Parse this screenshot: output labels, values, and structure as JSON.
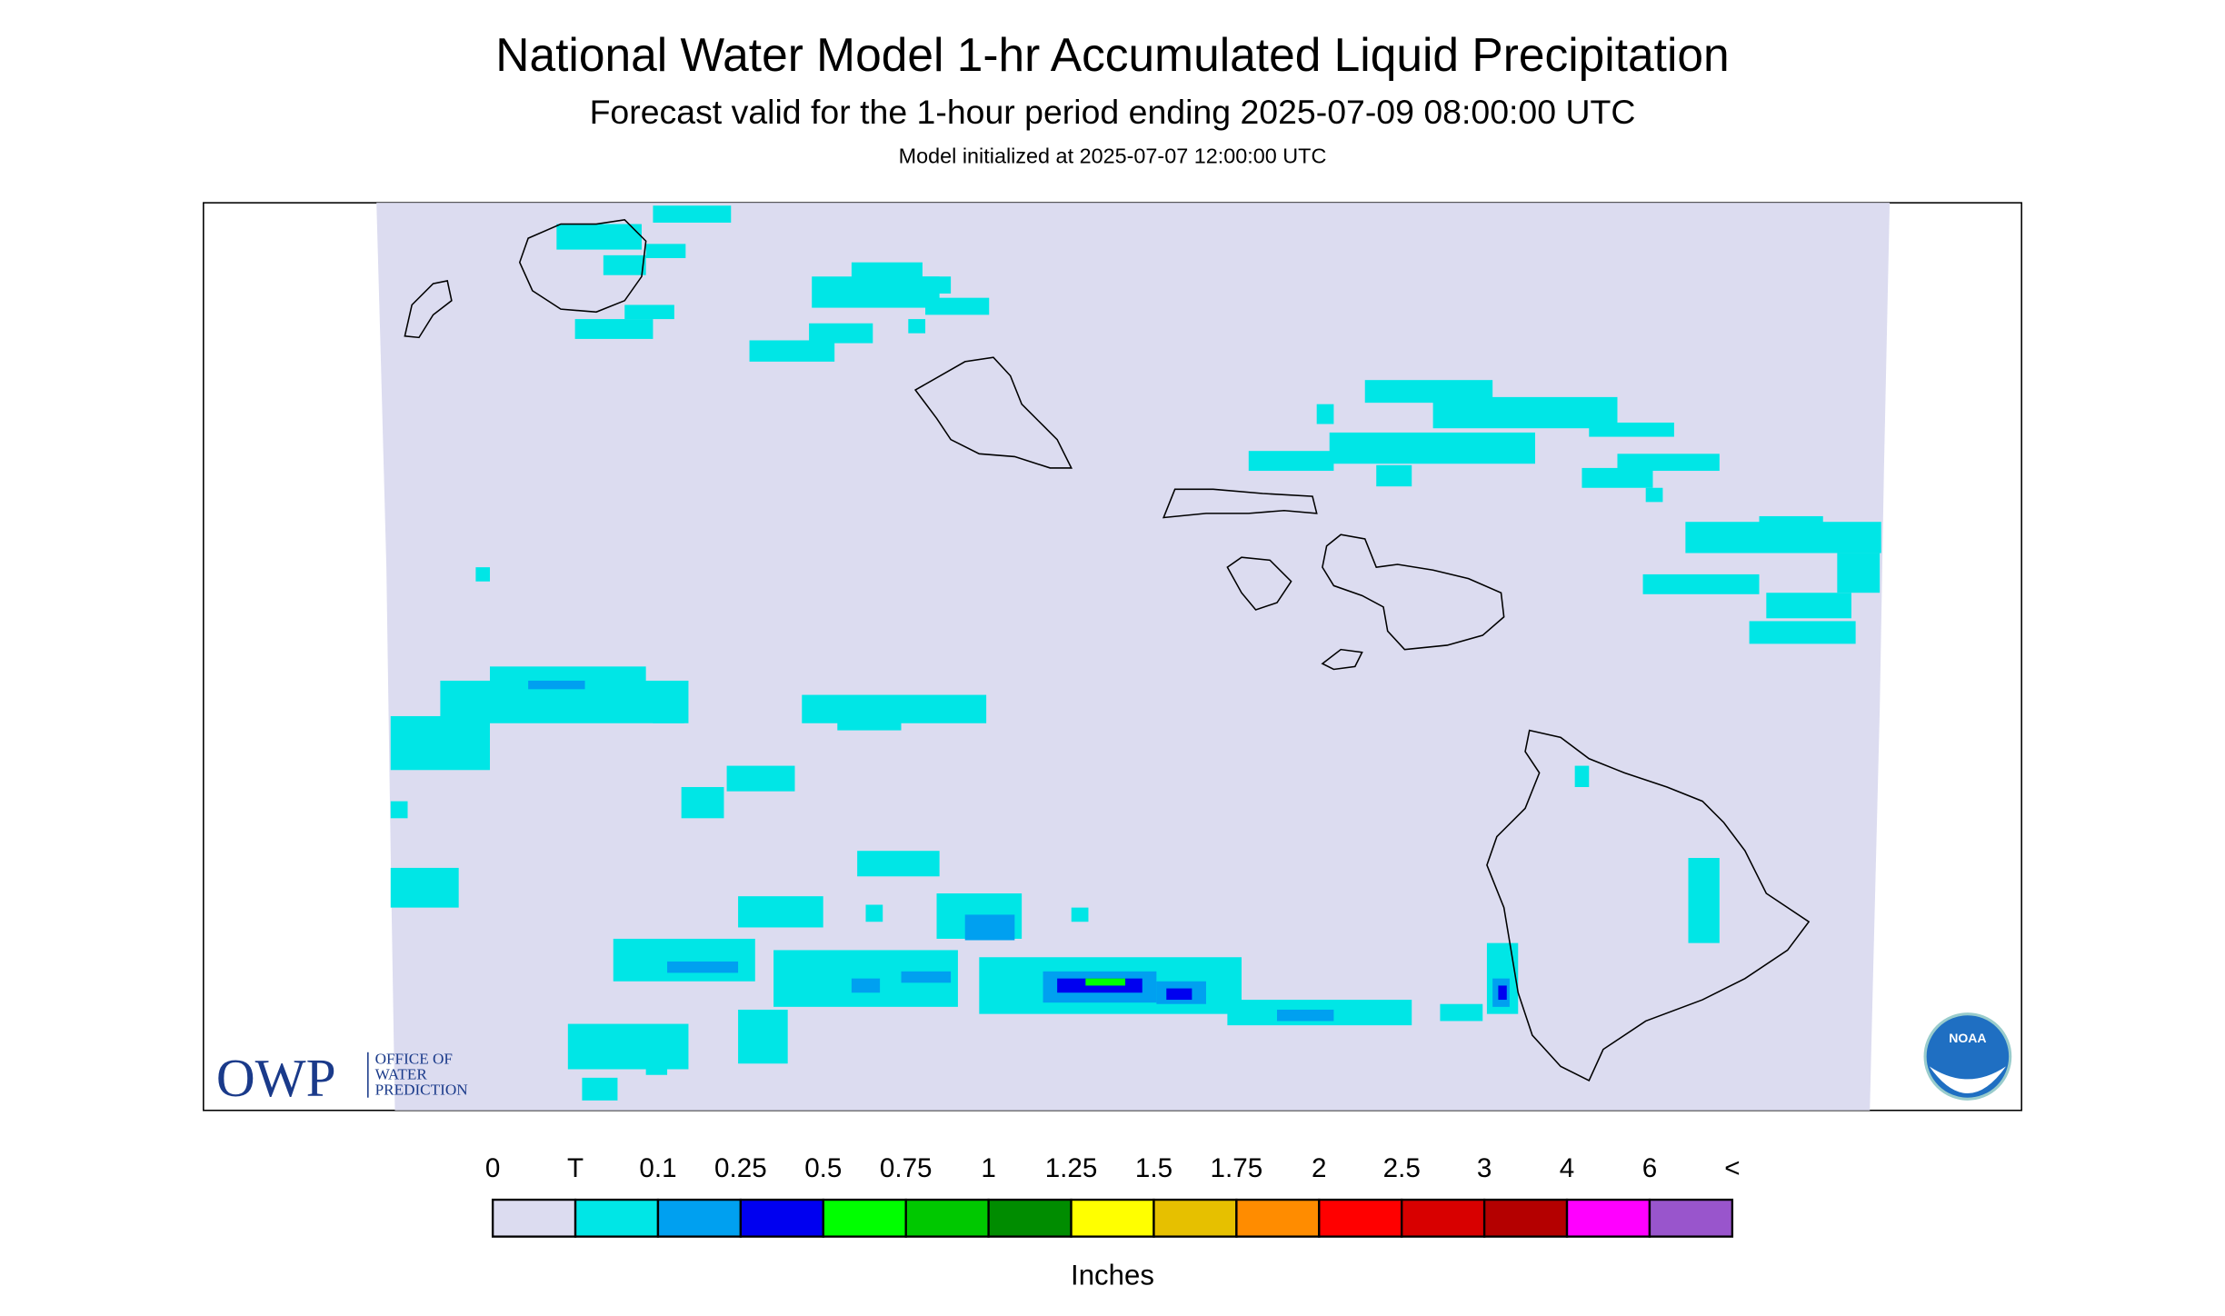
{
  "header": {
    "title": "National Water Model 1-hr Accumulated Liquid Precipitation",
    "subtitle": "Forecast valid for the 1-hour period ending 2025-07-09 08:00:00 UTC",
    "init": "Model initialized at 2025-07-07 12:00:00 UTC"
  },
  "legend": {
    "labels": [
      "0",
      "T",
      "0.1",
      "0.25",
      "0.5",
      "0.75",
      "1",
      "1.25",
      "1.5",
      "1.75",
      "2",
      "2.5",
      "3",
      "4",
      "6",
      "<"
    ],
    "colors": [
      "#dcdcf0",
      "#00e6e6",
      "#00a0f0",
      "#0000f0",
      "#00ff00",
      "#00c800",
      "#008c00",
      "#ffff00",
      "#e6c000",
      "#ff8c00",
      "#ff0000",
      "#d80000",
      "#b40000",
      "#ff00ff",
      "#9955cc"
    ],
    "unit": "Inches"
  },
  "logos": {
    "owp": "OWP",
    "owp_lines": [
      "OFFICE OF",
      "WATER",
      "PREDICTION"
    ],
    "noaa": "NOAA"
  }
}
